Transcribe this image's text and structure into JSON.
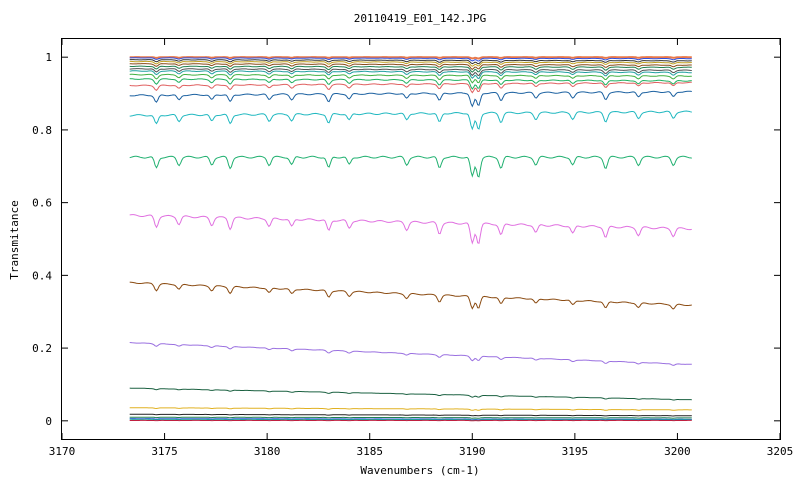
{
  "chart_data": {
    "type": "line",
    "title": "20110419_E01_142.JPG",
    "xlabel": "Wavenumbers (cm-1)",
    "ylabel": "Transmitance",
    "xlim": [
      3170,
      3205
    ],
    "ylim": [
      -0.05,
      1.05
    ],
    "x_ticks": [
      "3170",
      "3175",
      "3180",
      "3185",
      "3190",
      "3195",
      "3200",
      "3205"
    ],
    "y_ticks": [
      "0",
      "0.2",
      "0.4",
      "0.6",
      "0.8",
      "1"
    ],
    "x_range": [
      3173.3,
      3200.7
    ],
    "grid": false,
    "legend": "none",
    "absorption_lines": [
      3174.6,
      3175.7,
      3177.3,
      3178.2,
      3180.1,
      3181.2,
      3183.0,
      3184.0,
      3186.8,
      3188.4,
      3190.0,
      3190.3,
      3191.4,
      3193.1,
      3194.9,
      3196.5,
      3198.1,
      3199.8
    ],
    "series": [
      {
        "color": "#e8784a",
        "start": 1.0,
        "end": 1.0,
        "dip": 0.002
      },
      {
        "color": "#3050e0",
        "start": 0.998,
        "end": 0.996,
        "dip": 0.004
      },
      {
        "color": "#333333",
        "start": 0.993,
        "end": 0.99,
        "dip": 0.005
      },
      {
        "color": "#c0a020",
        "start": 0.988,
        "end": 0.985,
        "dip": 0.006
      },
      {
        "color": "#8a4a1a",
        "start": 0.982,
        "end": 0.978,
        "dip": 0.007
      },
      {
        "color": "#208050",
        "start": 0.975,
        "end": 0.972,
        "dip": 0.008
      },
      {
        "color": "#505050",
        "start": 0.968,
        "end": 0.964,
        "dip": 0.009
      },
      {
        "color": "#20a0a0",
        "start": 0.962,
        "end": 0.958,
        "dip": 0.01
      },
      {
        "color": "#40b040",
        "start": 0.952,
        "end": 0.948,
        "dip": 0.011
      },
      {
        "color": "#20b060",
        "start": 0.94,
        "end": 0.935,
        "dip": 0.013
      },
      {
        "color": "#e06060",
        "start": 0.922,
        "end": 0.93,
        "dip": 0.013
      },
      {
        "color": "#1a60a0",
        "start": 0.895,
        "end": 0.905,
        "dip": 0.02
      },
      {
        "color": "#20b8c0",
        "start": 0.84,
        "end": 0.85,
        "dip": 0.025
      },
      {
        "color": "#20b070",
        "start": 0.725,
        "end": 0.725,
        "dip": 0.03
      },
      {
        "color": "#e070e0",
        "start": 0.565,
        "end": 0.528,
        "dip": 0.03
      },
      {
        "color": "#8a4a10",
        "start": 0.38,
        "end": 0.318,
        "dip": 0.018
      },
      {
        "color": "#9a70e0",
        "start": 0.215,
        "end": 0.155,
        "dip": 0.007
      },
      {
        "color": "#1a6040",
        "start": 0.09,
        "end": 0.058,
        "dip": 0.003
      },
      {
        "color": "#e0b020",
        "start": 0.036,
        "end": 0.03,
        "dip": 0.002
      },
      {
        "color": "#202020",
        "start": 0.018,
        "end": 0.014,
        "dip": 0.001
      },
      {
        "color": "#208050",
        "start": 0.01,
        "end": 0.008,
        "dip": 0.001
      },
      {
        "color": "#3050e0",
        "start": 0.006,
        "end": 0.004,
        "dip": 0.001
      },
      {
        "color": "#20a0a0",
        "start": 0.004,
        "end": 0.003,
        "dip": 0.001
      },
      {
        "color": "#c02040",
        "start": 0.001,
        "end": 0.001,
        "dip": 0.0005
      }
    ]
  }
}
